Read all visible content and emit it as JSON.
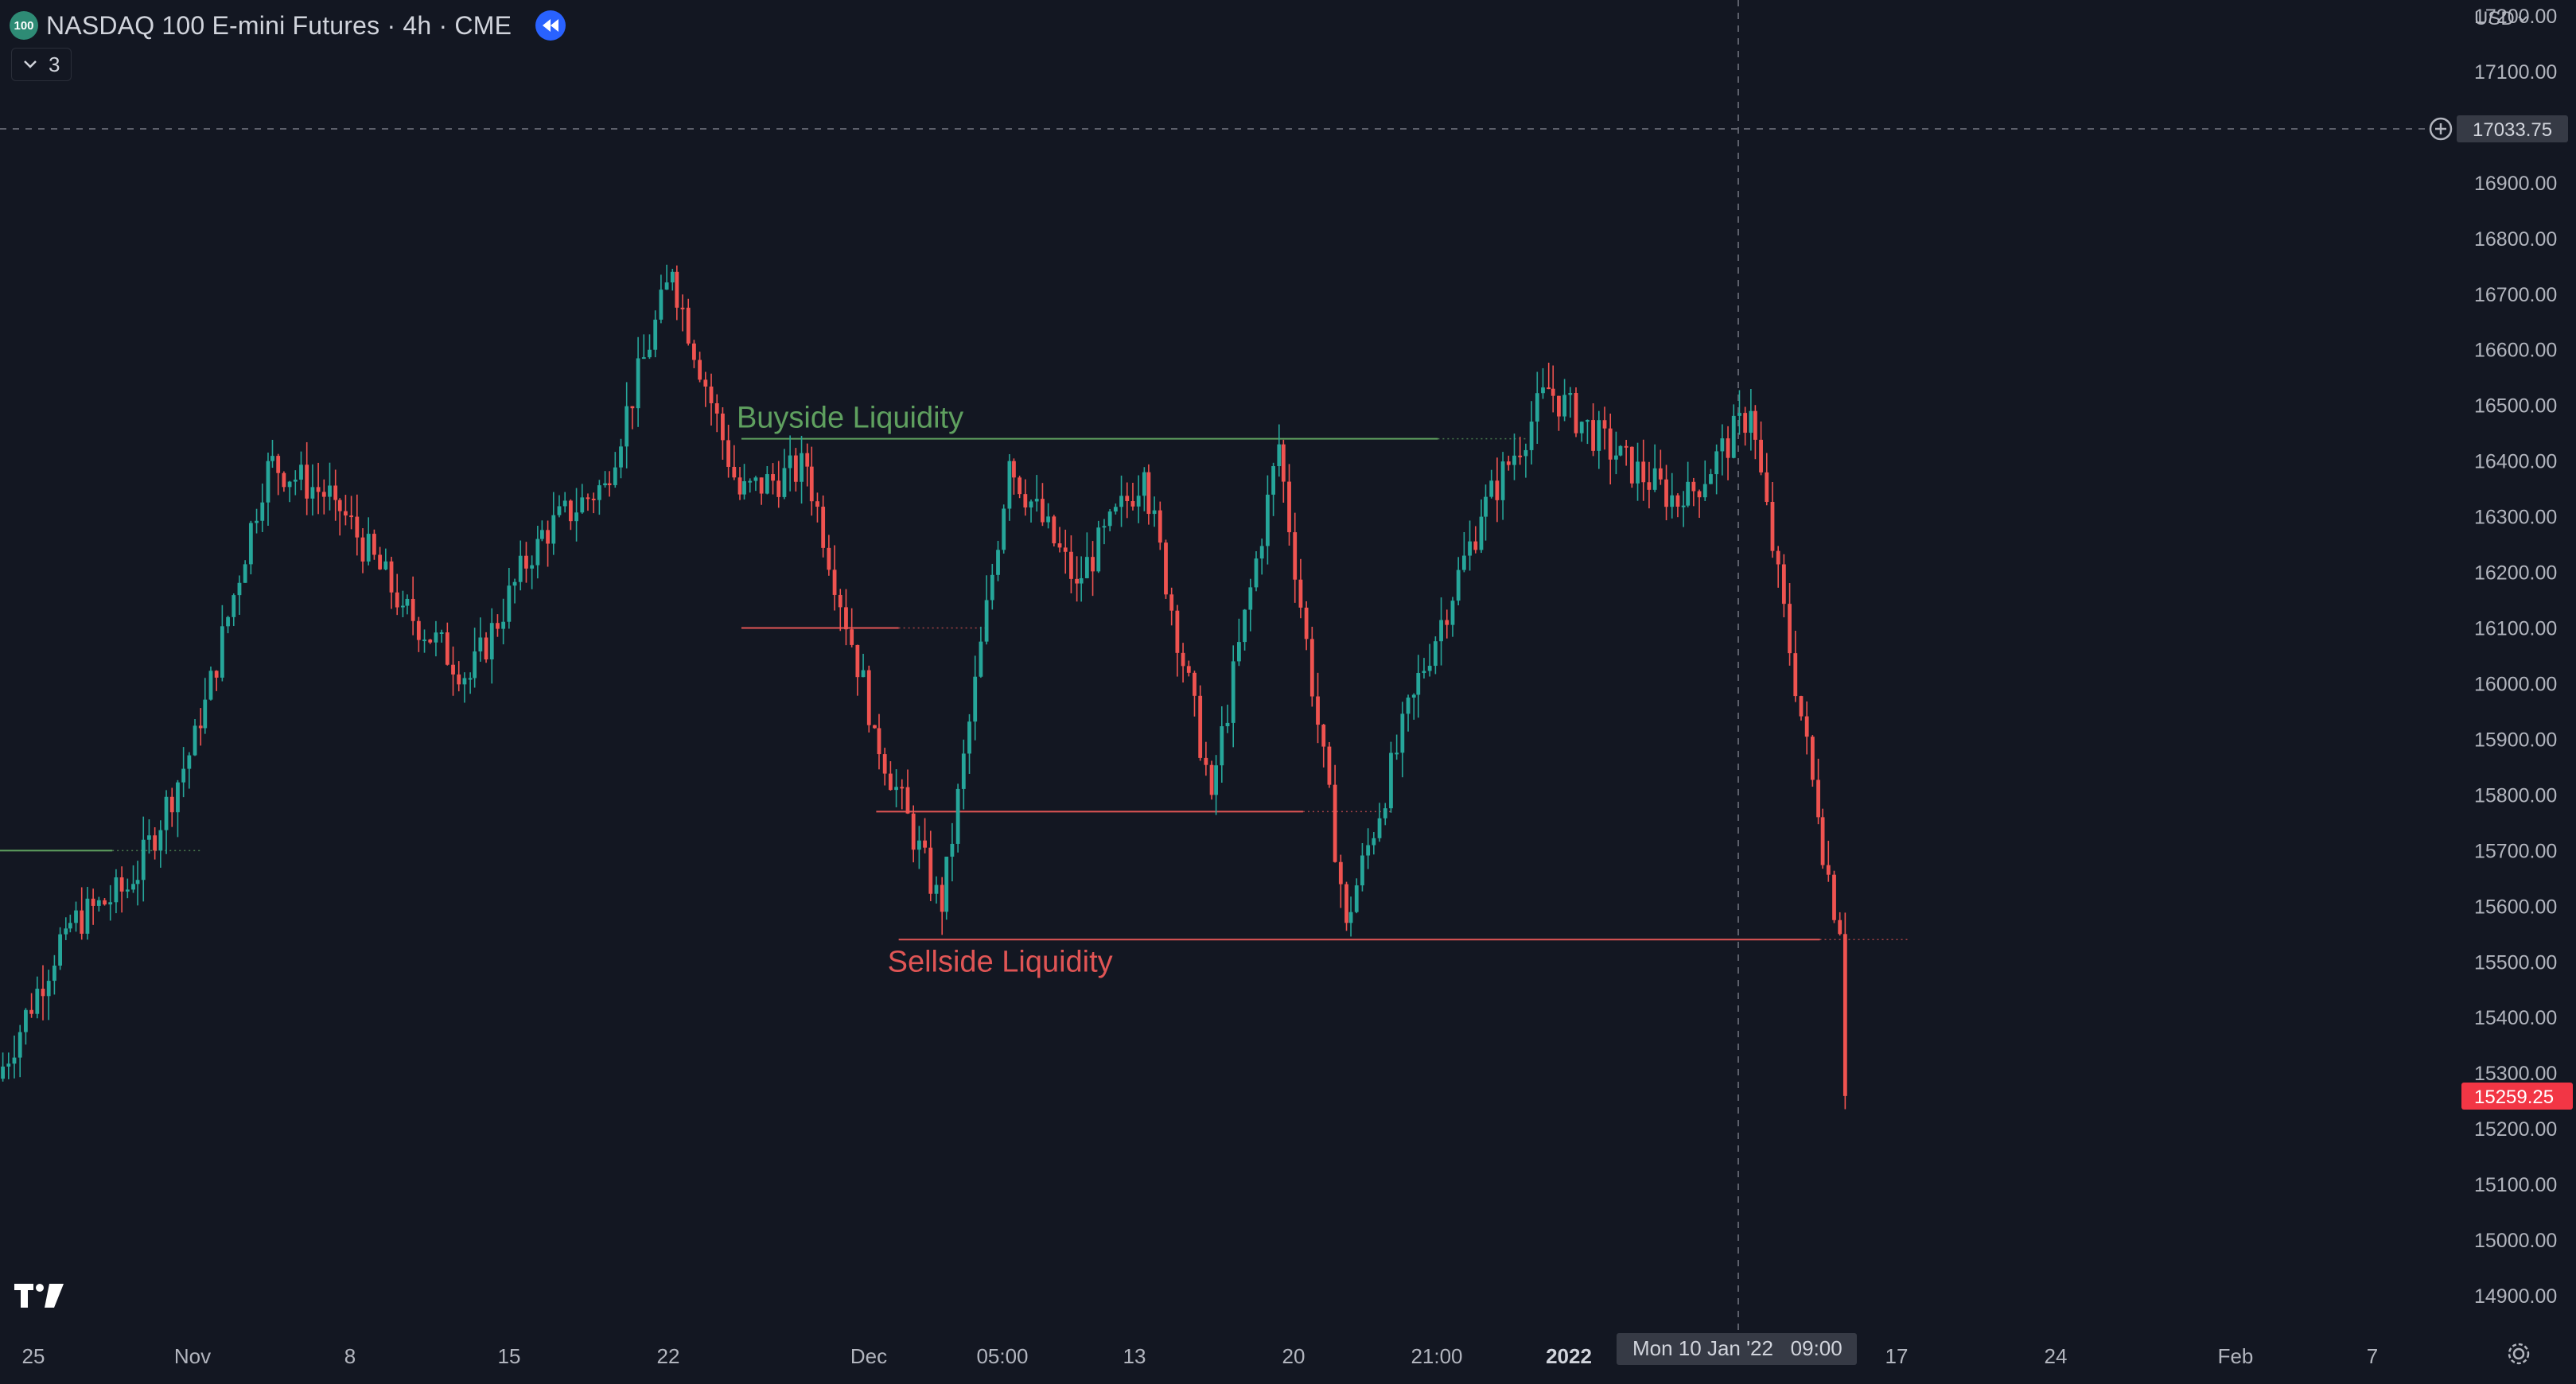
{
  "header": {
    "symbol_badge": "100",
    "title": "NASDAQ 100 E-mini Futures · 4h · CME",
    "replay_icon": "rewind-icon",
    "indicator_count": "3",
    "currency": "USD"
  },
  "colors": {
    "background": "#131722",
    "bull": "#26a69a",
    "bear": "#ef5350",
    "buyside": "#5fa05f",
    "sellside": "#e05555",
    "grid": "#1e222d",
    "axis_text": "#b2b5be"
  },
  "price_axis": {
    "ticks": [
      "17200.00",
      "17100.00",
      "17000.00",
      "16900.00",
      "16800.00",
      "16700.00",
      "16600.00",
      "16500.00",
      "16400.00",
      "16300.00",
      "16200.00",
      "16100.00",
      "16000.00",
      "15900.00",
      "15800.00",
      "15700.00",
      "15600.00",
      "15500.00",
      "15400.00",
      "15300.00",
      "15200.00",
      "15100.00",
      "15000.00",
      "14900.00"
    ],
    "crosshair_price": "17033.75",
    "last_price": "15259.25"
  },
  "time_axis": {
    "labels": [
      "25",
      "Nov",
      "8",
      "15",
      "22",
      "Dec",
      "05:00",
      "13",
      "20",
      "21:00",
      "2022",
      "17",
      "24",
      "Feb",
      "7"
    ],
    "bold_labels": [
      "2022"
    ],
    "crosshair_label": "Mon 10 Jan '22   09:00"
  },
  "chart_data": {
    "type": "candlestick",
    "title": "NASDAQ 100 E-mini Futures · 4h · CME",
    "ylim": [
      14870,
      17200
    ],
    "x_range": [
      "2021-10-25",
      "2022-02-10"
    ],
    "series": [
      {
        "name": "NASDAQ 100 E-mini Futures",
        "values": [
          {
            "date": "2021-10-25",
            "open": 15290,
            "close": 15560
          },
          {
            "date": "2021-10-28",
            "open": 15560,
            "close": 15640
          },
          {
            "date": "2021-10-31",
            "open": 15640,
            "close": 15920
          },
          {
            "date": "2021-11-03",
            "open": 15920,
            "close": 16400
          },
          {
            "date": "2021-11-06",
            "open": 16400,
            "close": 16330
          },
          {
            "date": "2021-11-09",
            "open": 16330,
            "close": 16140
          },
          {
            "date": "2021-11-12",
            "open": 16140,
            "close": 16010
          },
          {
            "date": "2021-11-15",
            "open": 16010,
            "close": 16260
          },
          {
            "date": "2021-11-18",
            "open": 16260,
            "close": 16360
          },
          {
            "date": "2021-11-21",
            "open": 16360,
            "close": 16740
          },
          {
            "date": "2021-11-24",
            "open": 16740,
            "close": 16340
          },
          {
            "date": "2021-11-27",
            "open": 16340,
            "close": 16390
          },
          {
            "date": "2021-11-30",
            "open": 16390,
            "close": 15920
          },
          {
            "date": "2021-12-03",
            "open": 15920,
            "close": 15590
          },
          {
            "date": "2021-12-06",
            "open": 15590,
            "close": 16400
          },
          {
            "date": "2021-12-09",
            "open": 16400,
            "close": 16180
          },
          {
            "date": "2021-12-12",
            "open": 16180,
            "close": 16380
          },
          {
            "date": "2021-12-15",
            "open": 16380,
            "close": 15800
          },
          {
            "date": "2021-12-18",
            "open": 15800,
            "close": 16430
          },
          {
            "date": "2021-12-21",
            "open": 16430,
            "close": 15570
          },
          {
            "date": "2021-12-24",
            "open": 15570,
            "close": 15980
          },
          {
            "date": "2021-12-27",
            "open": 15980,
            "close": 16300
          },
          {
            "date": "2021-12-30",
            "open": 16300,
            "close": 16530
          },
          {
            "date": "2022-01-02",
            "open": 16530,
            "close": 16410
          },
          {
            "date": "2022-01-05",
            "open": 16410,
            "close": 16320
          },
          {
            "date": "2022-01-08",
            "open": 16320,
            "close": 16490
          },
          {
            "date": "2022-01-11",
            "open": 16490,
            "close": 15760
          },
          {
            "date": "2022-01-14",
            "open": 15760,
            "close": 15550
          },
          {
            "date": "2022-01-15",
            "open": 15550,
            "close": 15259
          }
        ]
      }
    ],
    "annotations": [
      {
        "label": "Buyside Liquidity",
        "level": 16440,
        "from": "2021-11-27",
        "to": "2021-12-28"
      },
      {
        "label": "Sellside Liquidity",
        "level": 15540,
        "from": "2021-12-04",
        "to": "2022-01-14"
      },
      {
        "label": "",
        "level": 16100,
        "from": "2021-11-27",
        "to": "2021-12-04"
      },
      {
        "label": "",
        "level": 15770,
        "from": "2021-12-03",
        "to": "2021-12-22"
      },
      {
        "label": "",
        "level": 15700,
        "from": "2021-10-25",
        "to": "2021-10-30"
      }
    ],
    "grid": false,
    "legend": "none"
  }
}
